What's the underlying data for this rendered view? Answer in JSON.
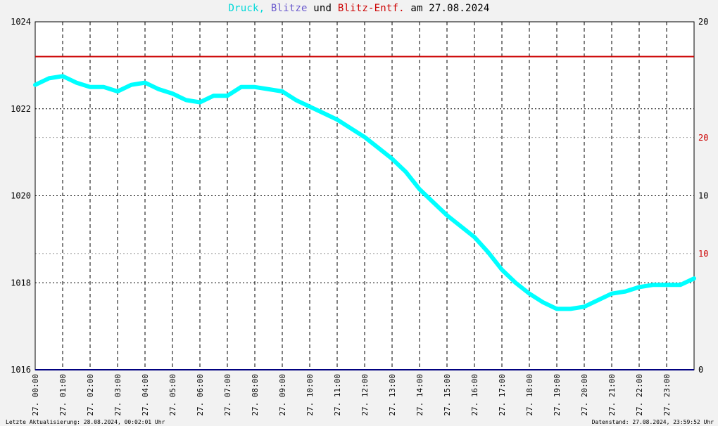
{
  "title": {
    "part1": "Druck,",
    "part2": "Blitze",
    "part3": "und",
    "part4": "Blitz-Entf.",
    "part5": "am 27.08.2024",
    "colors": {
      "part1": "#00d8d8",
      "part2": "#6a5acd",
      "part3": "#000000",
      "part4": "#cc0000",
      "part5": "#000000"
    }
  },
  "footer": {
    "left": "Letzte Aktualisierung: 28.08.2024, 00:02:01 Uhr",
    "right": "Datenstand: 27.08.2024, 23:59:52 Uhr"
  },
  "chart_data": {
    "type": "line",
    "background": "#ffffff",
    "grid": true,
    "y_left": {
      "ylim": [
        1016,
        1024
      ],
      "ticks": [
        "1016",
        "1018",
        "1020",
        "1022",
        "1024"
      ]
    },
    "y_right_black": {
      "ticks": [
        "0",
        "10",
        "20"
      ]
    },
    "y_right_red": {
      "ticks": [
        "10",
        "20"
      ],
      "color": "#cc0000"
    },
    "x_labels": [
      "27. 00:00",
      "27. 01:00",
      "27. 02:00",
      "27. 03:00",
      "27. 04:00",
      "27. 05:00",
      "27. 06:00",
      "27. 07:00",
      "27. 08:00",
      "27. 09:00",
      "27. 10:00",
      "27. 11:00",
      "27. 12:00",
      "27. 13:00",
      "27. 14:00",
      "27. 15:00",
      "27. 16:00",
      "27. 17:00",
      "27. 18:00",
      "27. 19:00",
      "27. 20:00",
      "27. 21:00",
      "27. 22:00",
      "27. 23:00"
    ],
    "series": [
      {
        "name": "Druck",
        "color": "#00ffff",
        "x_hours": [
          0,
          0.5,
          1,
          1.5,
          2,
          2.5,
          3,
          3.5,
          4,
          4.5,
          5,
          5.5,
          6,
          6.5,
          7,
          7.5,
          8,
          8.5,
          9,
          9.5,
          10,
          10.5,
          11,
          11.5,
          12,
          12.5,
          13,
          13.5,
          14,
          14.5,
          15,
          15.5,
          16,
          16.5,
          17,
          17.5,
          18,
          18.5,
          19,
          19.5,
          20,
          20.5,
          21,
          21.5,
          22,
          22.5,
          23,
          23.5,
          24
        ],
        "values": [
          1022.55,
          1022.7,
          1022.75,
          1022.6,
          1022.5,
          1022.5,
          1022.4,
          1022.55,
          1022.6,
          1022.45,
          1022.35,
          1022.2,
          1022.15,
          1022.3,
          1022.3,
          1022.5,
          1022.5,
          1022.45,
          1022.4,
          1022.2,
          1022.05,
          1021.9,
          1021.75,
          1021.55,
          1021.35,
          1021.1,
          1020.85,
          1020.55,
          1020.15,
          1019.85,
          1019.55,
          1019.3,
          1019.05,
          1018.7,
          1018.3,
          1018.0,
          1017.75,
          1017.55,
          1017.4,
          1017.4,
          1017.45,
          1017.6,
          1017.75,
          1017.8,
          1017.9,
          1017.95,
          1017.95,
          1017.95,
          1018.1
        ]
      },
      {
        "name": "Blitz-Entf.",
        "color": "#cc0000",
        "constant": 1023.2
      },
      {
        "name": "Blitze",
        "color": "#000080",
        "constant": 1016
      }
    ]
  }
}
